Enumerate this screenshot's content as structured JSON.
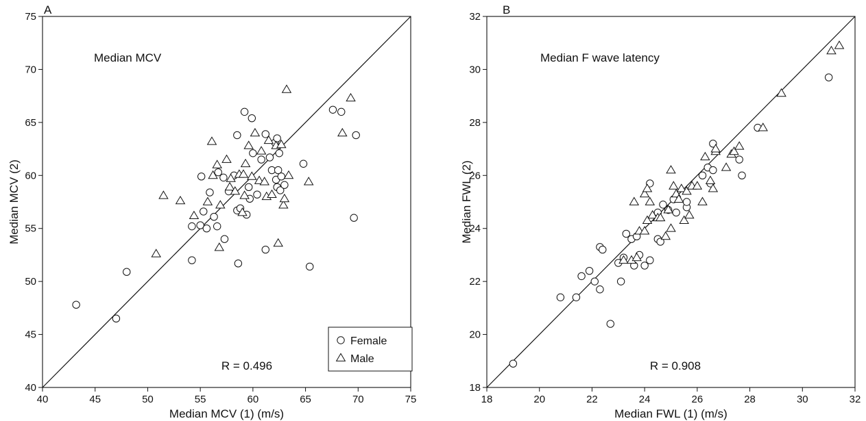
{
  "chart_data": [
    {
      "type": "scatter",
      "panel_label": "A",
      "title": "Median MCV",
      "xlabel": "Median MCV (1) (m/s)",
      "ylabel": "Median MCV (2)",
      "xlim": [
        40,
        75
      ],
      "ylim": [
        40,
        75
      ],
      "xticks": [
        40,
        45,
        50,
        55,
        60,
        65,
        70,
        75
      ],
      "yticks": [
        40,
        45,
        50,
        55,
        60,
        65,
        70,
        75
      ],
      "identity_line": true,
      "annotation": "R = 0.496",
      "legend": {
        "position": "bottom-right",
        "entries": [
          "Female",
          "Male"
        ]
      },
      "series": [
        {
          "name": "Female",
          "marker": "circle",
          "points": [
            [
              43.2,
              47.8
            ],
            [
              47.0,
              46.5
            ],
            [
              48.0,
              50.9
            ],
            [
              54.2,
              52.0
            ],
            [
              54.2,
              55.2
            ],
            [
              55.0,
              55.3
            ],
            [
              55.1,
              59.9
            ],
            [
              55.3,
              56.6
            ],
            [
              55.6,
              55.0
            ],
            [
              55.9,
              58.4
            ],
            [
              56.3,
              56.1
            ],
            [
              56.6,
              55.2
            ],
            [
              56.7,
              60.3
            ],
            [
              57.2,
              59.8
            ],
            [
              57.3,
              54.0
            ],
            [
              57.7,
              58.5
            ],
            [
              58.2,
              60.0
            ],
            [
              58.5,
              63.8
            ],
            [
              58.5,
              56.7
            ],
            [
              58.6,
              51.7
            ],
            [
              58.8,
              56.9
            ],
            [
              59.2,
              66.0
            ],
            [
              59.4,
              56.3
            ],
            [
              59.6,
              58.9
            ],
            [
              59.7,
              57.8
            ],
            [
              59.9,
              65.4
            ],
            [
              60.0,
              62.1
            ],
            [
              60.4,
              58.2
            ],
            [
              60.8,
              61.5
            ],
            [
              61.2,
              63.9
            ],
            [
              61.2,
              53.0
            ],
            [
              61.6,
              61.7
            ],
            [
              61.8,
              60.5
            ],
            [
              62.1,
              63.1
            ],
            [
              62.2,
              59.6
            ],
            [
              62.3,
              58.9
            ],
            [
              62.3,
              63.5
            ],
            [
              62.4,
              60.5
            ],
            [
              62.5,
              62.1
            ],
            [
              62.6,
              58.6
            ],
            [
              62.7,
              59.9
            ],
            [
              63.0,
              59.1
            ],
            [
              64.8,
              61.1
            ],
            [
              65.4,
              51.4
            ],
            [
              67.6,
              66.2
            ],
            [
              68.4,
              66.0
            ],
            [
              69.6,
              56.0
            ],
            [
              69.8,
              63.8
            ]
          ]
        },
        {
          "name": "Male",
          "marker": "triangle",
          "points": [
            [
              50.8,
              52.6
            ],
            [
              51.5,
              58.1
            ],
            [
              53.1,
              57.6
            ],
            [
              54.4,
              56.2
            ],
            [
              55.7,
              57.5
            ],
            [
              56.1,
              63.2
            ],
            [
              56.2,
              60.0
            ],
            [
              56.6,
              61.0
            ],
            [
              56.8,
              53.2
            ],
            [
              56.9,
              57.2
            ],
            [
              57.5,
              61.5
            ],
            [
              57.8,
              58.9
            ],
            [
              57.9,
              59.7
            ],
            [
              58.3,
              58.5
            ],
            [
              58.7,
              60.1
            ],
            [
              59.0,
              56.5
            ],
            [
              59.1,
              60.1
            ],
            [
              59.2,
              58.1
            ],
            [
              59.3,
              61.1
            ],
            [
              59.6,
              62.8
            ],
            [
              59.9,
              59.9
            ],
            [
              60.2,
              64.0
            ],
            [
              60.6,
              59.5
            ],
            [
              60.8,
              62.3
            ],
            [
              61.1,
              59.4
            ],
            [
              61.3,
              58.0
            ],
            [
              61.5,
              63.3
            ],
            [
              61.8,
              58.2
            ],
            [
              62.2,
              62.8
            ],
            [
              62.4,
              53.6
            ],
            [
              62.7,
              62.9
            ],
            [
              62.9,
              57.2
            ],
            [
              63.0,
              57.8
            ],
            [
              63.2,
              68.1
            ],
            [
              63.4,
              60.0
            ],
            [
              65.3,
              59.4
            ],
            [
              68.5,
              64.0
            ],
            [
              69.3,
              67.3
            ]
          ]
        }
      ]
    },
    {
      "type": "scatter",
      "panel_label": "B",
      "title": "Median F wave latency",
      "xlabel": "Median FWL (1) (m/s)",
      "ylabel": "Median FWL (2)",
      "xlim": [
        18,
        32
      ],
      "ylim": [
        18,
        32
      ],
      "xticks": [
        18,
        20,
        22,
        24,
        26,
        28,
        30,
        32
      ],
      "yticks": [
        18,
        20,
        22,
        24,
        26,
        28,
        30,
        32
      ],
      "identity_line": true,
      "annotation": "R = 0.908",
      "legend": null,
      "series": [
        {
          "name": "Female",
          "marker": "circle",
          "points": [
            [
              19.0,
              18.9
            ],
            [
              20.8,
              21.4
            ],
            [
              21.4,
              21.4
            ],
            [
              21.6,
              22.2
            ],
            [
              21.9,
              22.4
            ],
            [
              22.1,
              22.0
            ],
            [
              22.3,
              21.7
            ],
            [
              22.3,
              23.3
            ],
            [
              22.4,
              23.2
            ],
            [
              22.7,
              20.4
            ],
            [
              23.0,
              22.7
            ],
            [
              23.1,
              22.0
            ],
            [
              23.2,
              22.9
            ],
            [
              23.3,
              23.8
            ],
            [
              23.5,
              23.6
            ],
            [
              23.6,
              22.6
            ],
            [
              23.7,
              23.7
            ],
            [
              23.8,
              23.0
            ],
            [
              24.0,
              22.6
            ],
            [
              24.2,
              22.8
            ],
            [
              24.2,
              25.7
            ],
            [
              24.5,
              23.6
            ],
            [
              24.5,
              24.6
            ],
            [
              24.6,
              23.5
            ],
            [
              24.7,
              24.9
            ],
            [
              24.9,
              24.7
            ],
            [
              25.1,
              25.1
            ],
            [
              25.2,
              24.6
            ],
            [
              25.6,
              24.8
            ],
            [
              25.6,
              25.0
            ],
            [
              26.2,
              26.0
            ],
            [
              26.4,
              26.3
            ],
            [
              26.5,
              25.7
            ],
            [
              26.6,
              27.2
            ],
            [
              26.6,
              26.2
            ],
            [
              27.6,
              26.6
            ],
            [
              27.7,
              26.0
            ],
            [
              28.3,
              27.8
            ],
            [
              31.0,
              29.7
            ]
          ]
        },
        {
          "name": "Male",
          "marker": "triangle",
          "points": [
            [
              23.2,
              22.8
            ],
            [
              23.5,
              22.8
            ],
            [
              23.6,
              25.0
            ],
            [
              23.7,
              22.9
            ],
            [
              23.8,
              23.9
            ],
            [
              24.0,
              23.9
            ],
            [
              24.0,
              25.3
            ],
            [
              24.1,
              25.5
            ],
            [
              24.1,
              24.3
            ],
            [
              24.2,
              25.0
            ],
            [
              24.3,
              24.5
            ],
            [
              24.5,
              24.4
            ],
            [
              24.6,
              24.4
            ],
            [
              24.8,
              23.7
            ],
            [
              24.9,
              24.7
            ],
            [
              25.0,
              26.2
            ],
            [
              25.0,
              24.0
            ],
            [
              25.1,
              25.6
            ],
            [
              25.2,
              25.3
            ],
            [
              25.3,
              25.1
            ],
            [
              25.4,
              25.5
            ],
            [
              25.5,
              24.3
            ],
            [
              25.6,
              25.4
            ],
            [
              25.7,
              24.5
            ],
            [
              25.8,
              25.6
            ],
            [
              26.0,
              25.6
            ],
            [
              26.2,
              25.0
            ],
            [
              26.3,
              26.7
            ],
            [
              26.5,
              25.8
            ],
            [
              26.6,
              25.5
            ],
            [
              26.7,
              26.9
            ],
            [
              26.7,
              27.0
            ],
            [
              27.1,
              26.3
            ],
            [
              27.3,
              26.8
            ],
            [
              27.4,
              26.9
            ],
            [
              27.6,
              27.1
            ],
            [
              28.5,
              27.8
            ],
            [
              29.2,
              29.1
            ],
            [
              31.1,
              30.7
            ],
            [
              31.4,
              30.9
            ]
          ]
        }
      ]
    }
  ]
}
